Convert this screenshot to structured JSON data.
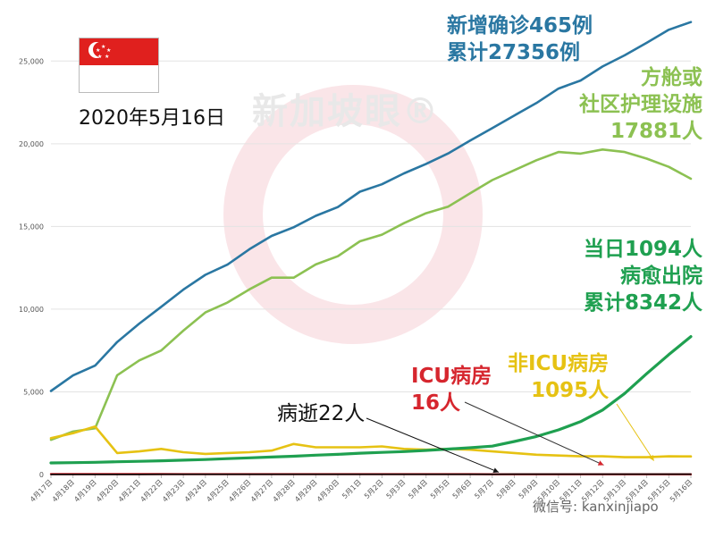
{
  "header": {
    "date": "2020年5月16日"
  },
  "flag": {
    "name": "Singapore"
  },
  "watermark": {
    "text": "新加坡眼®"
  },
  "footer": {
    "wechat": "微信号: kanxinjiapo"
  },
  "colors": {
    "cases": "#2a77a2",
    "community": "#8cc152",
    "recovered": "#1fa050",
    "icu": "#d6262e",
    "non_icu": "#e6c213",
    "deaths": "#000000"
  },
  "annotations": {
    "cases_line1": "新增确诊465例",
    "cases_line2": "累计27356例",
    "community_line1": "方舱或",
    "community_line2": "社区护理设施",
    "community_line3": "17881人",
    "recovered_line1": "当日1094人",
    "recovered_line2": "病愈出院",
    "recovered_line3": "累计8342人",
    "icu_line1": "ICU病房",
    "icu_line2": "16人",
    "non_icu_line1": "非ICU病房",
    "non_icu_line2": "1095人",
    "deaths": "病逝22人"
  },
  "chart_data": {
    "type": "line",
    "categories": [
      "4月17日",
      "4月18日",
      "4月19日",
      "4月20日",
      "4月21日",
      "4月22日",
      "4月23日",
      "4月24日",
      "4月25日",
      "4月26日",
      "4月27日",
      "4月28日",
      "4月29日",
      "4月30日",
      "5月1日",
      "5月2日",
      "5月3日",
      "5月4日",
      "5月5日",
      "5月6日",
      "5月7日",
      "5月8日",
      "5月9日",
      "5月10日",
      "5月11日",
      "5月12日",
      "5月13日",
      "5月14日",
      "5月15日",
      "5月16日"
    ],
    "ylim": [
      0,
      27500
    ],
    "yticks": [
      0,
      5000,
      10000,
      15000,
      20000,
      25000
    ],
    "ytick_labels": [
      "0",
      "5,000",
      "10,000",
      "15,000",
      "20,000",
      "25,000"
    ],
    "series": [
      {
        "key": "cases",
        "values": [
          5050,
          5990,
          6588,
          8014,
          9125,
          10141,
          11178,
          12075,
          12693,
          13624,
          14423,
          14951,
          15641,
          16169,
          17101,
          17548,
          18205,
          18778,
          19410,
          20198,
          20939,
          21707,
          22460,
          23336,
          23822,
          24671,
          25346,
          26098,
          26891,
          27356
        ]
      },
      {
        "key": "community",
        "values": [
          2100,
          2600,
          2800,
          6000,
          6900,
          7500,
          8700,
          9800,
          10400,
          11200,
          11900,
          11900,
          12700,
          13200,
          14100,
          14500,
          15200,
          15800,
          16200,
          17000,
          17800,
          18400,
          19000,
          19500,
          19400,
          19650,
          19500,
          19100,
          18600,
          17881
        ]
      },
      {
        "key": "non_icu",
        "values": [
          2200,
          2500,
          2900,
          1300,
          1400,
          1550,
          1350,
          1250,
          1300,
          1350,
          1450,
          1850,
          1650,
          1650,
          1650,
          1700,
          1550,
          1500,
          1550,
          1500,
          1400,
          1300,
          1200,
          1150,
          1100,
          1100,
          1050,
          1050,
          1100,
          1095
        ]
      },
      {
        "key": "recovered",
        "values": [
          700,
          720,
          740,
          770,
          800,
          830,
          870,
          910,
          960,
          1010,
          1060,
          1110,
          1170,
          1220,
          1290,
          1340,
          1390,
          1460,
          1540,
          1620,
          1720,
          2000,
          2300,
          2700,
          3200,
          3900,
          4900,
          6100,
          7248,
          8342
        ]
      },
      {
        "key": "icu",
        "values": [
          28,
          28,
          27,
          27,
          26,
          25,
          24,
          24,
          24,
          23,
          23,
          22,
          22,
          21,
          20,
          20,
          20,
          19,
          19,
          19,
          18,
          18,
          18,
          17,
          17,
          17,
          16,
          16,
          16,
          16
        ]
      },
      {
        "key": "deaths",
        "values": [
          12,
          12,
          12,
          13,
          13,
          14,
          14,
          14,
          14,
          14,
          14,
          14,
          15,
          15,
          16,
          17,
          17,
          17,
          18,
          18,
          18,
          20,
          20,
          20,
          20,
          21,
          21,
          21,
          21,
          22
        ]
      }
    ]
  }
}
